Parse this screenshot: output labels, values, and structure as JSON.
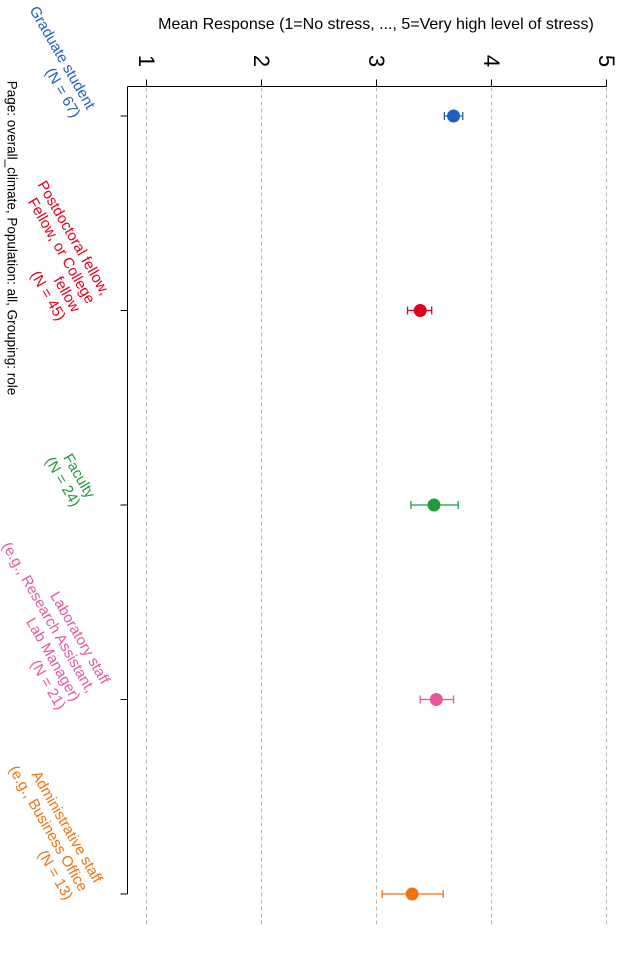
{
  "chart_data": {
    "type": "scatter",
    "orientation": "rotated 90 degrees clockwise (value axis across the top, categories running down)",
    "xlabel": "Mean Response (1=No stress, ..., 5=Very high level of stress)",
    "xlim": [
      1,
      5
    ],
    "ticks": [
      1,
      2,
      3,
      4,
      5
    ],
    "tick_labels": [
      "1",
      "2",
      "3",
      "4",
      "5"
    ],
    "grid": true,
    "error_bars": true,
    "groups": [
      {
        "label_lines": [
          "Graduate student",
          "(N = 67)"
        ],
        "mean": 3.67,
        "lower": 3.59,
        "upper": 3.75,
        "color": "#1f5fbf"
      },
      {
        "label_lines": [
          "Postdoctoral fellow,",
          "Fellow, or College",
          "fellow",
          "(N = 45)"
        ],
        "mean": 3.38,
        "lower": 3.27,
        "upper": 3.48,
        "color": "#e3001b"
      },
      {
        "label_lines": [
          "Faculty",
          "(N = 24)"
        ],
        "mean": 3.5,
        "lower": 3.3,
        "upper": 3.71,
        "color": "#1f9a3f"
      },
      {
        "label_lines": [
          "Laboratory staff",
          "(e.g., Research Assistant,",
          "Lab Manager)",
          "(N = 21)"
        ],
        "mean": 3.52,
        "lower": 3.38,
        "upper": 3.67,
        "color": "#e8569e"
      },
      {
        "label_lines": [
          "Administrative staff",
          "(e.g., Business Office",
          "(N = 13)"
        ],
        "mean": 3.31,
        "lower": 3.05,
        "upper": 3.58,
        "color": "#f0720f"
      }
    ]
  },
  "footer": "Page: overall_climate, Population: all, Grouping: role",
  "colors": {
    "axis": "#000000",
    "grid": "#b8b8b8",
    "text": "#000000"
  }
}
